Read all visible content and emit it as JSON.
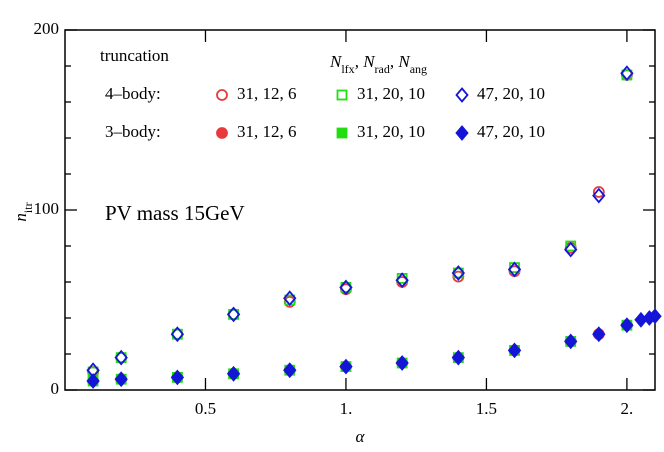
{
  "chart_data": {
    "type": "scatter",
    "xlabel": "α",
    "ylabel": {
      "text": "n",
      "sub": "itr"
    },
    "annotation": "PV mass 15GeV",
    "legend": {
      "title": "truncation",
      "header": [
        {
          "text": "N",
          "sub": "lfx"
        },
        {
          "text": ", N",
          "sub": "rad"
        },
        {
          "text": ", N",
          "sub": "ang"
        }
      ],
      "rows": [
        "4–body:",
        "3–body:"
      ]
    },
    "xlim": [
      0,
      2.1
    ],
    "ylim": [
      0,
      200
    ],
    "xticks": [
      0.5,
      {
        "value": 1,
        "label": "1."
      },
      1.5,
      {
        "value": 2,
        "label": "2."
      }
    ],
    "yticks": [
      0,
      100,
      200
    ],
    "yminorticks": [
      20,
      40,
      60,
      80,
      120,
      140,
      160,
      180
    ],
    "series": [
      {
        "name": "31, 12, 6",
        "row": 0,
        "marker": "circle",
        "filled": false,
        "color": "#e83a3a",
        "x": [
          0.1,
          0.2,
          0.4,
          0.6,
          0.8,
          1.0,
          1.2,
          1.4,
          1.6,
          1.8,
          1.9,
          2.0
        ],
        "values": [
          10,
          18,
          31,
          42,
          49,
          56,
          60,
          63,
          66,
          79,
          110,
          175
        ]
      },
      {
        "name": "31, 20, 10",
        "row": 0,
        "marker": "square",
        "filled": false,
        "color": "#22dd11",
        "x": [
          0.1,
          0.2,
          0.4,
          0.6,
          0.8,
          1.0,
          1.2,
          1.4,
          1.6,
          1.8,
          2.0
        ],
        "values": [
          10,
          18,
          31,
          42,
          50,
          57,
          62,
          65,
          68,
          80,
          175
        ]
      },
      {
        "name": "47, 20, 10",
        "row": 0,
        "marker": "diamond",
        "filled": false,
        "color": "#1515d8",
        "x": [
          0.1,
          0.2,
          0.4,
          0.6,
          0.8,
          1.0,
          1.2,
          1.4,
          1.6,
          1.8,
          1.9,
          2.0
        ],
        "values": [
          11,
          18,
          31,
          42,
          51,
          57,
          61,
          65,
          67,
          78,
          108,
          176
        ]
      },
      {
        "name": "31, 12, 6",
        "row": 1,
        "marker": "circle",
        "filled": true,
        "color": "#e83a3a",
        "x": [
          0.1,
          0.2,
          0.4,
          0.6,
          0.8,
          1.0,
          1.2,
          1.4,
          1.6,
          1.8,
          1.9,
          2.0
        ],
        "values": [
          5,
          6,
          7,
          9,
          11,
          13,
          15,
          18,
          22,
          27,
          31,
          36
        ]
      },
      {
        "name": "31, 20, 10",
        "row": 1,
        "marker": "square",
        "filled": true,
        "color": "#22dd11",
        "x": [
          0.1,
          0.2,
          0.4,
          0.6,
          0.8,
          1.0,
          1.2,
          1.4,
          1.6,
          1.8,
          2.0
        ],
        "values": [
          5,
          6,
          7,
          9,
          11,
          13,
          15,
          18,
          22,
          27,
          36
        ]
      },
      {
        "name": "47, 20, 10",
        "row": 1,
        "marker": "diamond",
        "filled": true,
        "color": "#1515d8",
        "x": [
          0.1,
          0.2,
          0.4,
          0.6,
          0.8,
          1.0,
          1.2,
          1.4,
          1.6,
          1.8,
          1.9,
          2.0,
          2.05,
          2.08,
          2.1
        ],
        "values": [
          5,
          6,
          7,
          9,
          11,
          13,
          15,
          18,
          22,
          27,
          31,
          36,
          39,
          40,
          41
        ]
      }
    ]
  }
}
